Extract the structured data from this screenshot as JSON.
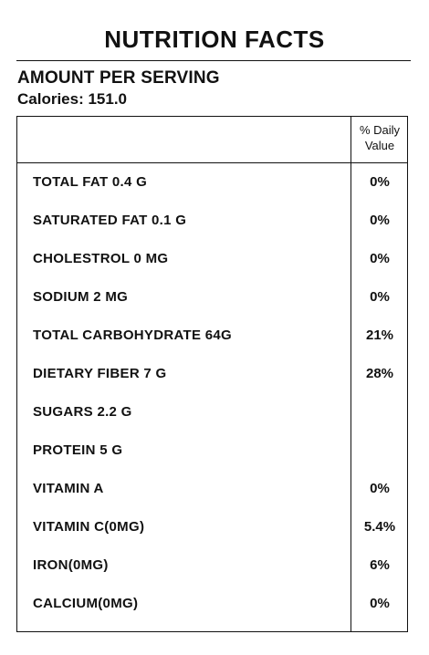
{
  "title": "NUTRITION FACTS",
  "amount_label": "AMOUNT PER SERVING",
  "calories_label": "Calories: 151.0",
  "daily_value_header": [
    "% Daily",
    "Value"
  ],
  "rows": [
    {
      "label": "TOTAL FAT 0.4 G",
      "dv": "0%"
    },
    {
      "label": "SATURATED FAT 0.1 G",
      "dv": "0%"
    },
    {
      "label": "CHOLESTROL 0 MG",
      "dv": "0%"
    },
    {
      "label": "SODIUM 2 MG",
      "dv": "0%"
    },
    {
      "label": "TOTAL CARBOHYDRATE 64G",
      "dv": "21%"
    },
    {
      "label": "DIETARY FIBER 7 G",
      "dv": "28%"
    },
    {
      "label": "SUGARS 2.2 G",
      "dv": ""
    },
    {
      "label": "PROTEIN 5 G",
      "dv": ""
    },
    {
      "label": "VITAMIN A",
      "dv": "0%"
    },
    {
      "label": "VITAMIN C(0MG)",
      "dv": "5.4%"
    },
    {
      "label": "IRON(0MG)",
      "dv": "6%"
    },
    {
      "label": "CALCIUM(0MG)",
      "dv": "0%"
    }
  ]
}
